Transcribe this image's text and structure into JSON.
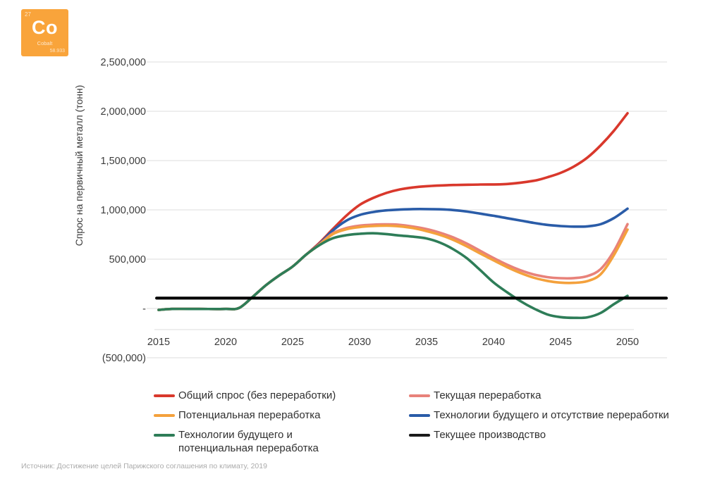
{
  "element_card": {
    "atomic_number": "27",
    "symbol": "Co",
    "name": "Cobalt",
    "atomic_mass": "58.933",
    "bg_color": "#F9A43B"
  },
  "source": {
    "text": "Источник: Достижение целей Парижского соглашения по климату, 2019"
  },
  "legend": {
    "items": [
      {
        "label": "Общий спрос (без переработки)",
        "color": "#D9382C"
      },
      {
        "label": "Потенциальная переработка",
        "color": "#F4A13C"
      },
      {
        "label": "Технологии будущего и потенциальная переработка",
        "color": "#2E7D58"
      },
      {
        "label": "Текущая переработка",
        "color": "#E8827A"
      },
      {
        "label": "Технологии будущего и отсутствие переработки",
        "color": "#2A5CA8"
      },
      {
        "label": "Текущее производство",
        "color": "#1A1A1A"
      }
    ]
  },
  "chart_data": {
    "type": "line",
    "title": "",
    "xlabel": "",
    "ylabel": "Спрос на первичный металл (тонн)",
    "unit": "тонн",
    "ylim": [
      -500000,
      2500000
    ],
    "xlim": [
      2014,
      2053
    ],
    "grid": "horizontal",
    "legend_position": "bottom",
    "gridline_color": "#DEDEDE",
    "tick_color": "#3C3C3C",
    "y_axis": {
      "ticks": [
        {
          "label": "2,500,000",
          "value": 2500000
        },
        {
          "label": "2,000,000",
          "value": 2000000
        },
        {
          "label": "1,500,000",
          "value": 1500000
        },
        {
          "label": "1,000,000",
          "value": 1000000
        },
        {
          "label": "500,000",
          "value": 500000
        },
        {
          "label": "-",
          "value": 0
        },
        {
          "label": "(500,000)",
          "value": -500000
        }
      ]
    },
    "x_axis": {
      "ticks": [
        2015,
        2020,
        2025,
        2030,
        2035,
        2040,
        2045,
        2050
      ]
    },
    "series": [
      {
        "id": "total-demand",
        "name": "Общий спрос (без переработки)",
        "color": "#D9382C",
        "width": 3.6,
        "points": [
          [
            2015,
            -15000
          ],
          [
            2016,
            -5000
          ],
          [
            2018,
            -5000
          ],
          [
            2020,
            -5000
          ],
          [
            2021,
            5000
          ],
          [
            2022,
            115000
          ],
          [
            2023,
            235000
          ],
          [
            2024,
            335000
          ],
          [
            2025,
            425000
          ],
          [
            2026,
            545000
          ],
          [
            2027,
            665000
          ],
          [
            2028,
            805000
          ],
          [
            2029,
            940000
          ],
          [
            2030,
            1050000
          ],
          [
            2031,
            1120000
          ],
          [
            2032,
            1172000
          ],
          [
            2033,
            1207000
          ],
          [
            2034,
            1228000
          ],
          [
            2035,
            1240000
          ],
          [
            2037,
            1252000
          ],
          [
            2039,
            1257000
          ],
          [
            2041,
            1262000
          ],
          [
            2043,
            1295000
          ],
          [
            2044,
            1330000
          ],
          [
            2045,
            1375000
          ],
          [
            2046,
            1440000
          ],
          [
            2047,
            1530000
          ],
          [
            2048,
            1655000
          ],
          [
            2049,
            1805000
          ],
          [
            2050,
            1980000
          ]
        ]
      },
      {
        "id": "future-tech-no-recycling",
        "name": "Технологии будущего и отсутствие переработки",
        "color": "#2A5CA8",
        "width": 3.6,
        "points": [
          [
            2015,
            -15000
          ],
          [
            2016,
            -5000
          ],
          [
            2018,
            -5000
          ],
          [
            2020,
            -5000
          ],
          [
            2021,
            5000
          ],
          [
            2022,
            115000
          ],
          [
            2023,
            235000
          ],
          [
            2024,
            335000
          ],
          [
            2025,
            425000
          ],
          [
            2026,
            545000
          ],
          [
            2027,
            655000
          ],
          [
            2028,
            790000
          ],
          [
            2029,
            890000
          ],
          [
            2030,
            948000
          ],
          [
            2031,
            978000
          ],
          [
            2032,
            995000
          ],
          [
            2033,
            1003000
          ],
          [
            2034,
            1008000
          ],
          [
            2035,
            1008000
          ],
          [
            2036,
            1006000
          ],
          [
            2037,
            998000
          ],
          [
            2038,
            983000
          ],
          [
            2039,
            962000
          ],
          [
            2040,
            940000
          ],
          [
            2041,
            916000
          ],
          [
            2042,
            892000
          ],
          [
            2043,
            868000
          ],
          [
            2044,
            848000
          ],
          [
            2045,
            836000
          ],
          [
            2046,
            830000
          ],
          [
            2047,
            833000
          ],
          [
            2048,
            855000
          ],
          [
            2049,
            918000
          ],
          [
            2050,
            1012000
          ]
        ]
      },
      {
        "id": "current-recycling",
        "name": "Текущая переработка",
        "color": "#E8827A",
        "width": 3.6,
        "points": [
          [
            2015,
            -15000
          ],
          [
            2016,
            -5000
          ],
          [
            2018,
            -5000
          ],
          [
            2020,
            -5000
          ],
          [
            2021,
            5000
          ],
          [
            2022,
            115000
          ],
          [
            2023,
            235000
          ],
          [
            2024,
            335000
          ],
          [
            2025,
            425000
          ],
          [
            2026,
            545000
          ],
          [
            2027,
            650000
          ],
          [
            2028,
            762000
          ],
          [
            2029,
            815000
          ],
          [
            2030,
            840000
          ],
          [
            2031,
            850000
          ],
          [
            2032,
            853000
          ],
          [
            2033,
            848000
          ],
          [
            2034,
            830000
          ],
          [
            2035,
            805000
          ],
          [
            2036,
            768000
          ],
          [
            2037,
            720000
          ],
          [
            2038,
            658000
          ],
          [
            2039,
            585000
          ],
          [
            2040,
            512000
          ],
          [
            2041,
            445000
          ],
          [
            2042,
            388000
          ],
          [
            2043,
            345000
          ],
          [
            2044,
            318000
          ],
          [
            2045,
            307000
          ],
          [
            2046,
            308000
          ],
          [
            2047,
            328000
          ],
          [
            2048,
            400000
          ],
          [
            2049,
            585000
          ],
          [
            2050,
            855000
          ]
        ]
      },
      {
        "id": "potential-recycling",
        "name": "Потенциальная переработка",
        "color": "#F4A13C",
        "width": 3.6,
        "points": [
          [
            2015,
            -15000
          ],
          [
            2016,
            -5000
          ],
          [
            2018,
            -5000
          ],
          [
            2020,
            -5000
          ],
          [
            2021,
            5000
          ],
          [
            2022,
            115000
          ],
          [
            2023,
            235000
          ],
          [
            2024,
            335000
          ],
          [
            2025,
            425000
          ],
          [
            2026,
            545000
          ],
          [
            2027,
            646000
          ],
          [
            2028,
            754000
          ],
          [
            2029,
            803000
          ],
          [
            2030,
            826000
          ],
          [
            2031,
            836000
          ],
          [
            2032,
            839000
          ],
          [
            2033,
            833000
          ],
          [
            2034,
            815000
          ],
          [
            2035,
            784000
          ],
          [
            2036,
            746000
          ],
          [
            2037,
            695000
          ],
          [
            2038,
            630000
          ],
          [
            2039,
            558000
          ],
          [
            2040,
            488000
          ],
          [
            2041,
            420000
          ],
          [
            2042,
            360000
          ],
          [
            2043,
            312000
          ],
          [
            2044,
            280000
          ],
          [
            2045,
            262000
          ],
          [
            2046,
            260000
          ],
          [
            2047,
            277000
          ],
          [
            2048,
            348000
          ],
          [
            2049,
            545000
          ],
          [
            2050,
            800000
          ]
        ]
      },
      {
        "id": "future-tech-potential-recycling",
        "name": "Технологии будущего и потенциальная переработка",
        "color": "#2E7D58",
        "width": 3.6,
        "points": [
          [
            2015,
            -15000
          ],
          [
            2016,
            -5000
          ],
          [
            2018,
            -5000
          ],
          [
            2020,
            -5000
          ],
          [
            2021,
            5000
          ],
          [
            2022,
            115000
          ],
          [
            2023,
            235000
          ],
          [
            2024,
            335000
          ],
          [
            2025,
            425000
          ],
          [
            2026,
            545000
          ],
          [
            2027,
            642000
          ],
          [
            2028,
            712000
          ],
          [
            2029,
            743000
          ],
          [
            2030,
            757000
          ],
          [
            2031,
            763000
          ],
          [
            2032,
            754000
          ],
          [
            2033,
            740000
          ],
          [
            2034,
            728000
          ],
          [
            2035,
            710000
          ],
          [
            2036,
            668000
          ],
          [
            2037,
            600000
          ],
          [
            2038,
            510000
          ],
          [
            2039,
            390000
          ],
          [
            2040,
            264000
          ],
          [
            2041,
            165000
          ],
          [
            2042,
            75000
          ],
          [
            2043,
            0
          ],
          [
            2044,
            -60000
          ],
          [
            2045,
            -88000
          ],
          [
            2046,
            -95000
          ],
          [
            2047,
            -90000
          ],
          [
            2048,
            -45000
          ],
          [
            2049,
            45000
          ],
          [
            2050,
            128000
          ]
        ]
      },
      {
        "id": "current-production",
        "name": "Текущее производство",
        "color": "#000000",
        "width": 4.2,
        "straight": true,
        "points": [
          [
            2014.85,
            105000
          ],
          [
            2052.9,
            105000
          ]
        ]
      }
    ]
  }
}
